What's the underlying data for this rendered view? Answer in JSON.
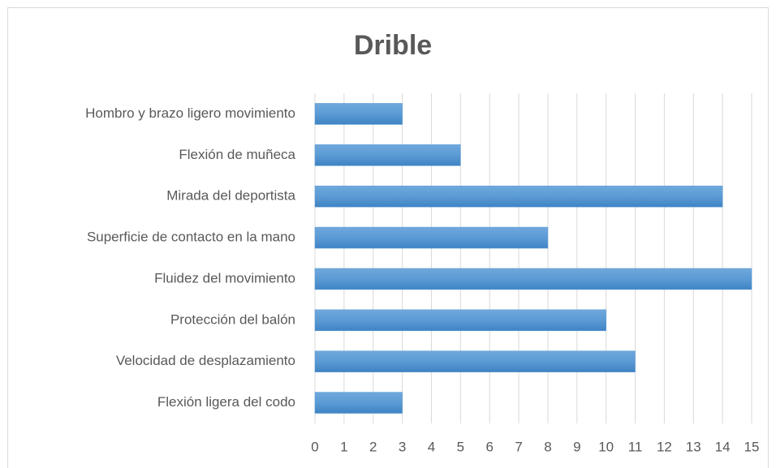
{
  "chart_data": {
    "type": "bar",
    "orientation": "horizontal",
    "title": "Drible",
    "categories": [
      "Hombro y brazo ligero movimiento",
      "Flexión de muñeca",
      "Mirada del deportista",
      "Superficie de contacto en la mano",
      "Fluidez del movimiento",
      "Protección del balón",
      "Velocidad de desplazamiento",
      "Flexión ligera del codo"
    ],
    "values": [
      3,
      5,
      14,
      8,
      15,
      10,
      11,
      3
    ],
    "color": "#5b9bd5",
    "xlim": [
      0,
      15
    ],
    "xticks": [
      0,
      1,
      2,
      3,
      4,
      5,
      6,
      7,
      8,
      9,
      10,
      11,
      12,
      13,
      14,
      15
    ],
    "grid": true
  }
}
